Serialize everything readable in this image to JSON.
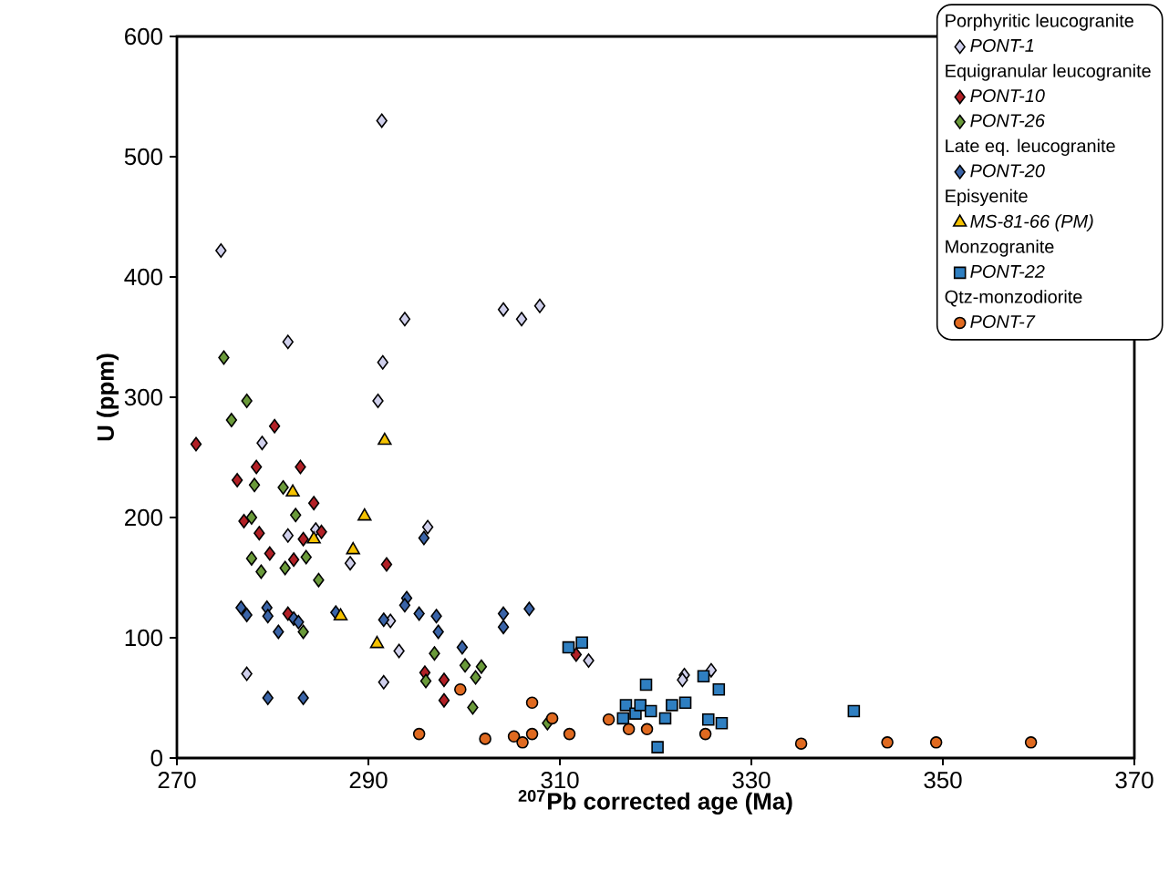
{
  "chart_data": {
    "type": "scatter",
    "xlabel": "$^{207}$Pb corrected age (Ma)",
    "ylabel": "U (ppm)",
    "xlim": [
      270,
      370
    ],
    "xticks": [
      270,
      290,
      310,
      330,
      350,
      370
    ],
    "ylim": [
      0,
      600
    ],
    "yticks": [
      0,
      100,
      200,
      300,
      400,
      500,
      600
    ],
    "grid": false,
    "legend": "top right",
    "annotations": [
      "Porphyritic leucogranite",
      "Equigranular leucogranite",
      "Late eq. leucogranite",
      "Episyenite",
      "Monzogranite",
      "Qtz-monzodiorite"
    ],
    "series": [
      {
        "name": "PONT-1",
        "color": "#d0d0ec",
        "marker": "diamond",
        "x": [
          291.4,
          274.6,
          281.6,
          293.8,
          291.5,
          291,
          278.9,
          304.1,
          306,
          307.9,
          296.2,
          281.6,
          284.5,
          288.1,
          292.3,
          293.2,
          277.3,
          291.6,
          313,
          323,
          322.8,
          325.8
        ],
        "values": [
          530,
          422,
          346,
          365,
          329,
          297,
          262,
          373,
          365,
          376,
          192,
          185,
          190,
          162,
          114,
          89,
          70,
          63,
          81,
          69,
          65,
          73
        ]
      },
      {
        "name": "PONT-10",
        "color": "#b22026",
        "marker": "diamond",
        "x": [
          280.2,
          272,
          278.3,
          276.3,
          282.9,
          284.3,
          277,
          278.6,
          283.2,
          285.1,
          291.9,
          279.7,
          282.2,
          281.6,
          295.9,
          297.9,
          297.9,
          311.7
        ],
        "values": [
          276,
          261,
          242,
          231,
          242,
          212,
          197,
          187,
          182,
          188,
          161,
          170,
          165,
          120,
          71,
          65,
          48,
          86
        ]
      },
      {
        "name": "PONT-26",
        "color": "#6a9a3a",
        "marker": "diamond",
        "x": [
          274.9,
          277.3,
          275.7,
          278.1,
          281.1,
          277.8,
          282.4,
          277.8,
          278.8,
          281.3,
          283.5,
          284.8,
          283.2,
          296.9,
          296,
          300.1,
          301.2,
          301.8,
          300.9,
          308.7
        ],
        "values": [
          333,
          297,
          281,
          227,
          225,
          200,
          202,
          166,
          155,
          158,
          167,
          148,
          105,
          87,
          64,
          77,
          67,
          76,
          42,
          29
        ]
      },
      {
        "name": "PONT-20",
        "color": "#3a64a8",
        "marker": "diamond",
        "x": [
          295.8,
          276.7,
          277.3,
          279.4,
          279.5,
          280.6,
          282.2,
          282.7,
          286.6,
          291.6,
          294,
          293.8,
          295.3,
          297.1,
          297.3,
          279.5,
          283.2,
          299.8,
          304.1,
          304.1,
          306.8
        ],
        "values": [
          183,
          125,
          119,
          125,
          118,
          105,
          116,
          113,
          121,
          115,
          133,
          127,
          120,
          118,
          105,
          50,
          50,
          92,
          120,
          109,
          124
        ]
      },
      {
        "name": "MS-81-66 (PM)",
        "color": "#f5c200",
        "marker": "triangle",
        "x": [
          291.7,
          282.1,
          289.6,
          284.3,
          288.4,
          287.1,
          290.9
        ],
        "values": [
          264,
          221,
          201,
          182,
          173,
          118,
          95
        ]
      },
      {
        "name": "PONT-22",
        "color": "#2f7fc1",
        "marker": "square",
        "x": [
          310.9,
          312.3,
          319,
          316.9,
          317.9,
          316.6,
          318.4,
          319.5,
          320.2,
          321.7,
          323.1,
          321,
          325,
          326.6,
          325.5,
          326.9,
          340.7
        ],
        "values": [
          92,
          96,
          61,
          44,
          37,
          33,
          44,
          39,
          9,
          44,
          46,
          33,
          68,
          57,
          32,
          29,
          39
        ]
      },
      {
        "name": "PONT-7",
        "color": "#e06a20",
        "marker": "circle",
        "x": [
          295.3,
          299.6,
          302.2,
          307.1,
          305.2,
          306.1,
          307.1,
          309.2,
          311,
          315.1,
          317.2,
          319.1,
          325.2,
          335.2,
          344.2,
          349.3,
          359.2
        ],
        "values": [
          20,
          57,
          16,
          46,
          18,
          13,
          20,
          33,
          20,
          32,
          24,
          24,
          20,
          12,
          13,
          13,
          13
        ]
      }
    ]
  }
}
